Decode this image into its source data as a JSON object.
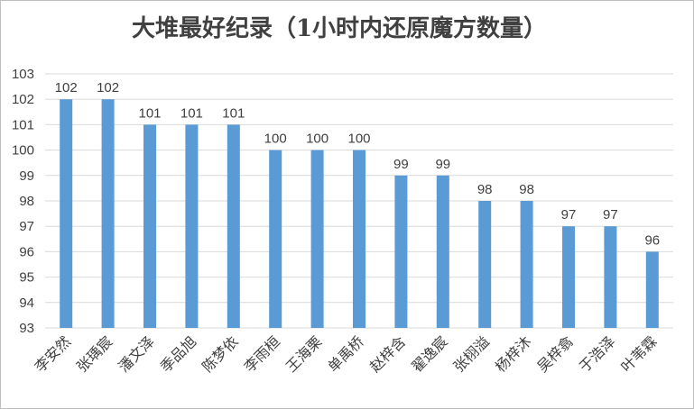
{
  "chart_data": {
    "type": "bar",
    "title": "大堆最好纪录（1小时内还原魔方数量）",
    "xlabel": "",
    "ylabel": "",
    "ylim": [
      93,
      103
    ],
    "yticks": [
      93,
      94,
      95,
      96,
      97,
      98,
      99,
      100,
      101,
      102,
      103
    ],
    "grid": true,
    "legend": "none",
    "bar_color": "#5b9bd5",
    "categories": [
      "李安然",
      "张瑀宸",
      "潘文泽",
      "季品旭",
      "陈梦依",
      "李雨桓",
      "王海栗",
      "单禹桥",
      "赵梓含",
      "翟逸宸",
      "张栩溢",
      "杨梓沐",
      "吴梓翕",
      "于浩泽",
      "叶苇霖"
    ],
    "values": [
      102,
      102,
      101,
      101,
      101,
      100,
      100,
      100,
      99,
      99,
      98,
      98,
      97,
      97,
      96
    ]
  }
}
